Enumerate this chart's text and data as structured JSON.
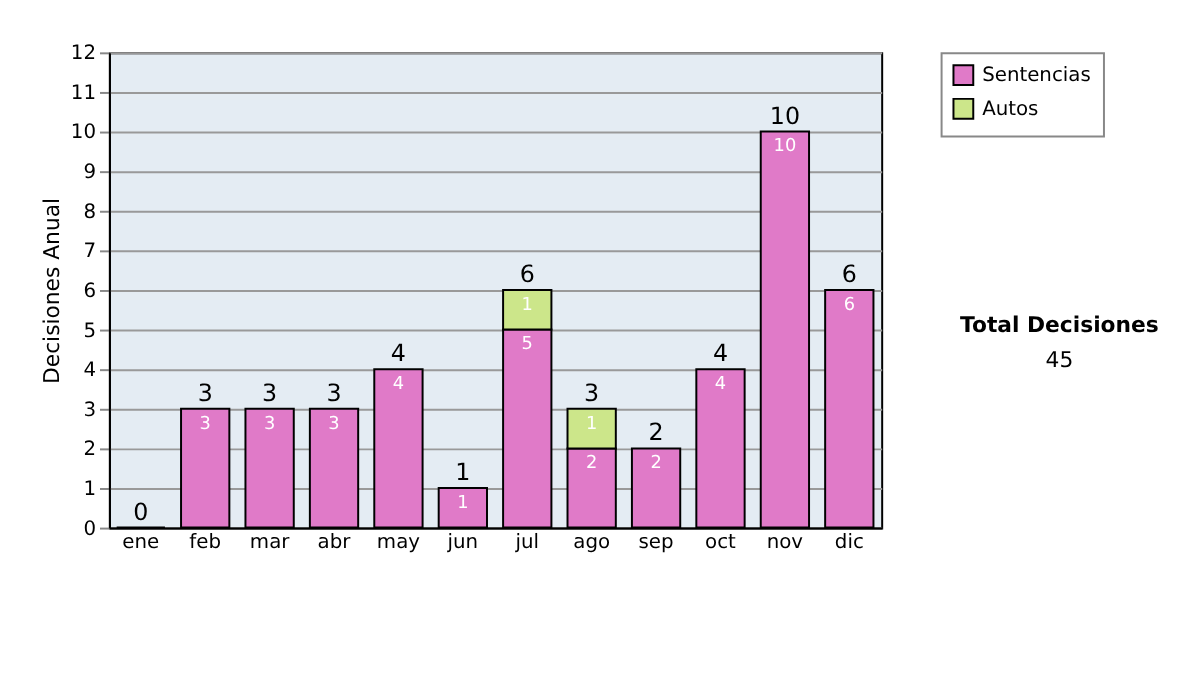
{
  "chart_data": {
    "type": "bar",
    "stacked": true,
    "ylabel": "Decisiones Anual",
    "categories": [
      "ene",
      "feb",
      "mar",
      "abr",
      "may",
      "jun",
      "jul",
      "ago",
      "sep",
      "oct",
      "nov",
      "dic"
    ],
    "series": [
      {
        "name": "Sentencias",
        "color": "#e07ac8",
        "values": [
          0,
          3,
          3,
          3,
          4,
          1,
          5,
          2,
          2,
          4,
          10,
          6
        ],
        "value_labels": [
          null,
          "3",
          "3",
          "3",
          "4",
          "1",
          "5",
          "2",
          "2",
          "4",
          "10",
          "6"
        ]
      },
      {
        "name": "Autos",
        "color": "#cce68a",
        "values": [
          null,
          null,
          null,
          null,
          null,
          null,
          1,
          1,
          null,
          null,
          null,
          null
        ],
        "value_labels": [
          null,
          null,
          null,
          null,
          null,
          null,
          "1",
          "1",
          null,
          null,
          null,
          null
        ]
      }
    ],
    "totals": [
      "0",
      "3",
      "3",
      "3",
      "4",
      "1",
      "6",
      "3",
      "2",
      "4",
      "10",
      "6"
    ],
    "ylim": [
      0,
      12
    ],
    "yticks": [
      0,
      1,
      2,
      3,
      4,
      5,
      6,
      7,
      8,
      9,
      10,
      11,
      12
    ],
    "grid": "y",
    "legend": "right",
    "annotations": [
      "Total Decisiones",
      "45"
    ]
  }
}
